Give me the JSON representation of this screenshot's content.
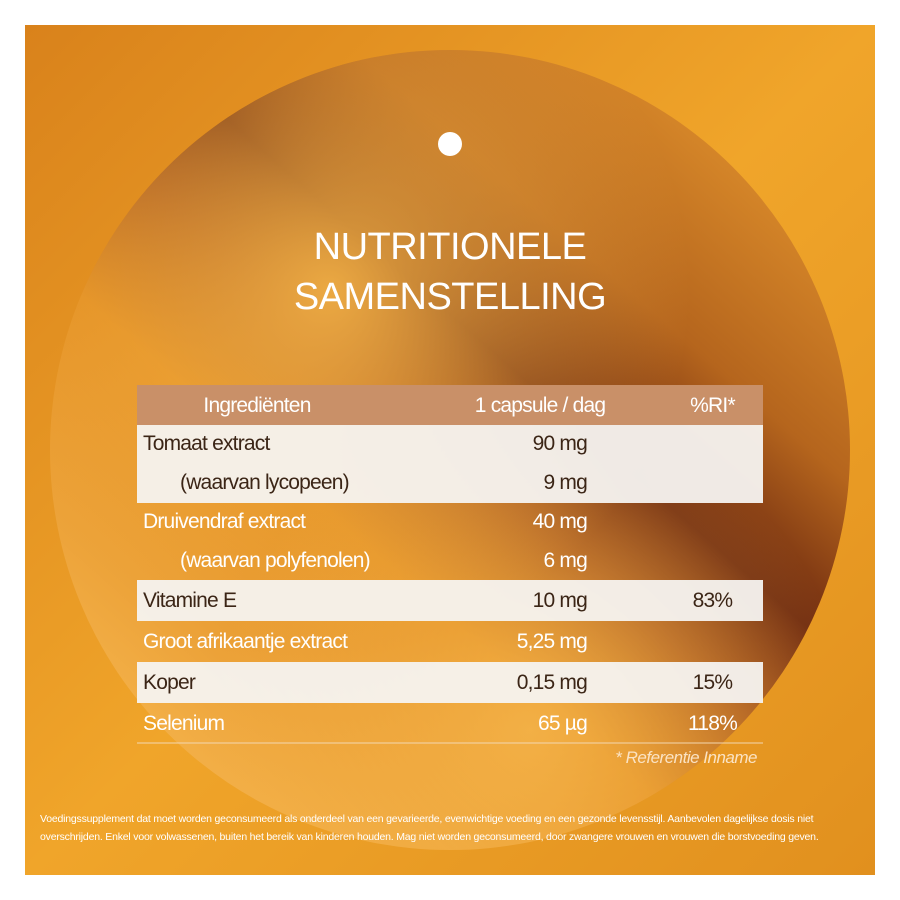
{
  "header": {
    "title": [
      "NUTRITIONELE",
      "SAMENSTELLING"
    ]
  },
  "table": {
    "columns": [
      "Ingrediënten",
      "1 capsule / dag",
      "%RI*"
    ],
    "groups": [
      {
        "shaded": true,
        "rows": [
          {
            "name": "Tomaat extract",
            "amount": "90 mg"
          },
          {
            "name": "(waarvan lycopeen)",
            "amount": "9 mg",
            "sub": true
          }
        ]
      },
      {
        "shaded": false,
        "rows": [
          {
            "name": "Druivendraf extract",
            "amount": "40 mg"
          },
          {
            "name": "(waarvan polyfenolen)",
            "amount": "6 mg",
            "sub": true
          }
        ]
      },
      {
        "shaded": true,
        "rows": [
          {
            "name": "Vitamine E",
            "amount": "10 mg",
            "ri": "83%"
          }
        ]
      },
      {
        "shaded": false,
        "rows": [
          {
            "name": "Groot afrikaantje extract",
            "amount": "5,25 mg"
          }
        ]
      },
      {
        "shaded": true,
        "rows": [
          {
            "name": "Koper",
            "amount": "0,15 mg",
            "ri": "15%"
          }
        ]
      },
      {
        "shaded": false,
        "rows": [
          {
            "name": "Selenium",
            "amount": "65 µg",
            "ri": "118%"
          }
        ]
      }
    ]
  },
  "footnote": "* Referentie Inname",
  "disclaimer": "Voedingssupplement dat moet worden geconsumeerd als onderdeel van een gevarieerde, evenwichtige voeding en een gezonde levensstijl. Aanbevolen dagelijkse dosis niet overschrijden. Enkel voor volwassenen, buiten het bereik van kinderen houden. Mag niet worden geconsumeerd, door zwangere vrouwen en vrouwen die borstvoeding geven."
}
